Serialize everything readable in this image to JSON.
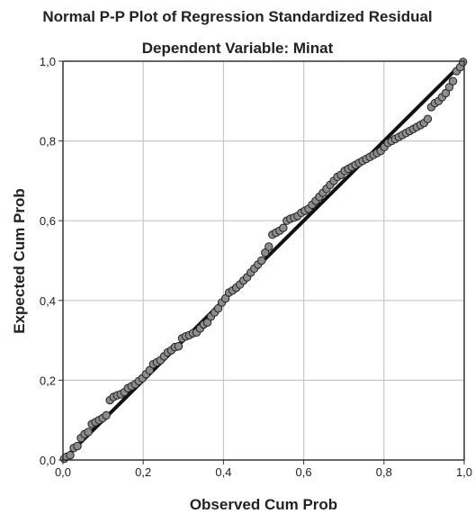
{
  "chart_data": {
    "type": "scatter",
    "title": "Normal P-P Plot of Regression Standardized Residual",
    "subtitle": "Dependent Variable: Minat",
    "xlabel": "Observed Cum Prob",
    "ylabel": "Expected Cum Prob",
    "xlim": [
      0,
      1
    ],
    "ylim": [
      0,
      1
    ],
    "xticks": [
      "0,0",
      "0,2",
      "0,4",
      "0,6",
      "0,8",
      "1,0"
    ],
    "yticks": [
      "0,0",
      "0,2",
      "0,4",
      "0,6",
      "0,8",
      "1,0"
    ],
    "grid": true,
    "legend": "none",
    "reference_line": {
      "from": [
        0,
        0
      ],
      "to": [
        1,
        1
      ]
    },
    "points": {
      "x": [
        0.003,
        0.009,
        0.018,
        0.027,
        0.036,
        0.045,
        0.054,
        0.063,
        0.072,
        0.081,
        0.09,
        0.099,
        0.108,
        0.117,
        0.126,
        0.135,
        0.144,
        0.153,
        0.162,
        0.171,
        0.18,
        0.189,
        0.198,
        0.207,
        0.216,
        0.225,
        0.234,
        0.243,
        0.252,
        0.261,
        0.27,
        0.279,
        0.288,
        0.297,
        0.306,
        0.315,
        0.324,
        0.333,
        0.342,
        0.351,
        0.36,
        0.369,
        0.378,
        0.387,
        0.396,
        0.405,
        0.414,
        0.423,
        0.432,
        0.441,
        0.45,
        0.459,
        0.468,
        0.477,
        0.486,
        0.495,
        0.504,
        0.513,
        0.522,
        0.531,
        0.54,
        0.549,
        0.558,
        0.567,
        0.576,
        0.585,
        0.594,
        0.603,
        0.612,
        0.621,
        0.63,
        0.639,
        0.648,
        0.657,
        0.666,
        0.675,
        0.684,
        0.693,
        0.702,
        0.711,
        0.72,
        0.729,
        0.738,
        0.747,
        0.756,
        0.765,
        0.774,
        0.783,
        0.792,
        0.801,
        0.81,
        0.819,
        0.828,
        0.837,
        0.846,
        0.855,
        0.864,
        0.873,
        0.882,
        0.891,
        0.9,
        0.909,
        0.918,
        0.927,
        0.936,
        0.945,
        0.954,
        0.963,
        0.972,
        0.981,
        0.99,
        0.997
      ],
      "y": [
        0.003,
        0.008,
        0.012,
        0.03,
        0.035,
        0.055,
        0.065,
        0.07,
        0.09,
        0.095,
        0.1,
        0.105,
        0.112,
        0.15,
        0.158,
        0.162,
        0.165,
        0.17,
        0.18,
        0.185,
        0.19,
        0.198,
        0.205,
        0.215,
        0.225,
        0.24,
        0.245,
        0.25,
        0.26,
        0.27,
        0.275,
        0.283,
        0.285,
        0.305,
        0.31,
        0.313,
        0.318,
        0.32,
        0.33,
        0.34,
        0.345,
        0.36,
        0.37,
        0.38,
        0.395,
        0.405,
        0.42,
        0.425,
        0.432,
        0.44,
        0.45,
        0.458,
        0.47,
        0.48,
        0.49,
        0.5,
        0.52,
        0.535,
        0.565,
        0.57,
        0.575,
        0.582,
        0.6,
        0.605,
        0.608,
        0.612,
        0.62,
        0.625,
        0.63,
        0.64,
        0.65,
        0.66,
        0.67,
        0.68,
        0.69,
        0.7,
        0.71,
        0.715,
        0.725,
        0.73,
        0.735,
        0.74,
        0.745,
        0.75,
        0.755,
        0.76,
        0.765,
        0.77,
        0.775,
        0.785,
        0.795,
        0.8,
        0.805,
        0.81,
        0.815,
        0.82,
        0.825,
        0.83,
        0.835,
        0.84,
        0.845,
        0.855,
        0.885,
        0.895,
        0.9,
        0.91,
        0.92,
        0.935,
        0.95,
        0.975,
        0.985,
        0.998
      ]
    }
  },
  "colors": {
    "point_fill": "#8c8c8c",
    "point_stroke": "#222222",
    "reference_line": "#111111",
    "grid": "#c8c8c8",
    "frame": "#333333",
    "text": "#222222"
  }
}
